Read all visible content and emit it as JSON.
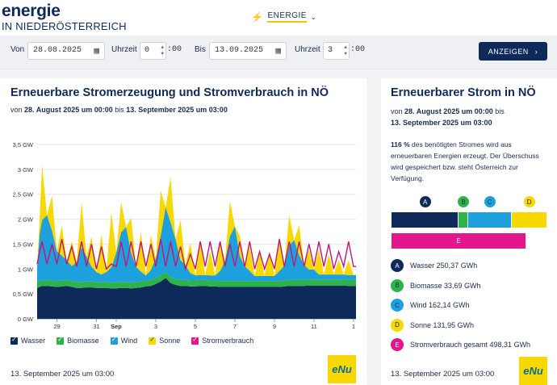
{
  "header": {
    "brand_title": "energie",
    "brand_subtitle": "IN NIEDERÖSTERREICH",
    "nav_label": "ENERGIE"
  },
  "filter": {
    "von_label": "Von",
    "von_value": "28.08.2025",
    "uhrzeit1_label": "Uhrzeit",
    "uhrzeit1_value": "0",
    "uhrzeit1_suffix": ":00",
    "bis_label": "Bis",
    "bis_value": "13.09.2025",
    "uhrzeit2_label": "Uhrzeit",
    "uhrzeit2_value": "3",
    "uhrzeit2_suffix": ":00",
    "button_label": "ANZEIGEN"
  },
  "left_card": {
    "title": "Erneuerbare Stromerzeugung und Stromverbrauch in NÖ",
    "sub_prefix": "von ",
    "sub_from": "28. August 2025 um 00:00",
    "sub_mid": " bis ",
    "sub_to": "13. September 2025 um 03:00",
    "footer_date": "13. September 2025 um 03:00",
    "legend": {
      "wasser": "Wasser",
      "biomasse": "Biomasse",
      "wind": "Wind",
      "sonne": "Sonne",
      "strom": "Stromverbrauch"
    }
  },
  "right_card": {
    "title": "Erneuerbarer Strom in NÖ",
    "sub_prefix": "von ",
    "sub_from": "28. August 2025 um 00:00",
    "sub_mid": " bis",
    "sub_to": "13. September 2025 um 03:00",
    "percent": "116 %",
    "text": " des benötigten Stromes wird aus erneuerbaren Energien erzeugt. Der Überschuss wird gespeichert bzw. steht Österreich zur Verfügung.",
    "footer_date": "13. September 2025 um 03:00",
    "items": [
      {
        "letter": "A",
        "label": "Wasser 250,37 GWh",
        "color": "#0e2a5a",
        "text_color": "#ffffff"
      },
      {
        "letter": "B",
        "label": "Biomasse 33,69 GWh",
        "color": "#2db34a",
        "text_color": "#0e2a5a"
      },
      {
        "letter": "C",
        "label": "Wind 162,14 GWh",
        "color": "#1ea0dc",
        "text_color": "#0e2a5a"
      },
      {
        "letter": "D",
        "label": "Sonne 131,95 GWh",
        "color": "#f7d800",
        "text_color": "#0e2a5a"
      },
      {
        "letter": "E",
        "label": "Stromverbrauch gesamt 498,31 GWh",
        "color": "#e3168c",
        "text_color": "#ffffff"
      }
    ]
  },
  "logo_text": "eNu",
  "chart_data": {
    "type": "area",
    "stacked": true,
    "ylabel": "",
    "ylim": [
      0,
      3.5
    ],
    "yticks": [
      "0 GW",
      "0,5 GW",
      "1 GW",
      "1,5 GW",
      "2 GW",
      "2,5 GW",
      "3 GW",
      "3,5 GW"
    ],
    "xticks": [
      "29",
      "31",
      "Sep",
      "3",
      "5",
      "7",
      "9",
      "11",
      "1"
    ],
    "xlim_days": [
      0,
      16.125
    ],
    "xtick_days": [
      1,
      3,
      4,
      6,
      8,
      10,
      12,
      14,
      16
    ],
    "x_days": [
      0,
      0.125,
      0.25,
      0.5,
      0.75,
      1.0,
      1.25,
      1.5,
      1.75,
      2.0,
      2.25,
      2.5,
      2.75,
      3.0,
      3.25,
      3.5,
      3.75,
      4.0,
      4.25,
      4.5,
      4.75,
      5.0,
      5.25,
      5.5,
      5.75,
      6.0,
      6.25,
      6.5,
      6.75,
      7.0,
      7.25,
      7.5,
      7.75,
      8.0,
      8.25,
      8.5,
      8.75,
      9.0,
      9.25,
      9.5,
      9.75,
      10.0,
      10.25,
      10.5,
      10.75,
      11.0,
      11.25,
      11.5,
      11.75,
      12.0,
      12.25,
      12.5,
      12.75,
      13.0,
      13.25,
      13.5,
      13.75,
      14.0,
      14.25,
      14.5,
      14.75,
      15.0,
      15.25,
      15.5,
      15.75,
      16.0,
      16.125
    ],
    "series": [
      {
        "name": "Wasser",
        "color": "#0e2a5a",
        "values": [
          0.62,
          0.64,
          0.66,
          0.66,
          0.65,
          0.64,
          0.65,
          0.66,
          0.64,
          0.62,
          0.62,
          0.63,
          0.63,
          0.62,
          0.62,
          0.62,
          0.61,
          0.61,
          0.62,
          0.62,
          0.61,
          0.62,
          0.63,
          0.65,
          0.66,
          0.7,
          0.75,
          0.82,
          0.72,
          0.68,
          0.66,
          0.66,
          0.65,
          0.65,
          0.66,
          0.66,
          0.65,
          0.65,
          0.64,
          0.64,
          0.64,
          0.64,
          0.64,
          0.64,
          0.64,
          0.64,
          0.64,
          0.64,
          0.64,
          0.64,
          0.64,
          0.65,
          0.66,
          0.66,
          0.66,
          0.66,
          0.67,
          0.67,
          0.67,
          0.67,
          0.67,
          0.67,
          0.67,
          0.67,
          0.66,
          0.66,
          0.66
        ]
      },
      {
        "name": "Biomasse",
        "color": "#2db34a",
        "values": [
          0.12,
          0.12,
          0.12,
          0.12,
          0.12,
          0.12,
          0.12,
          0.12,
          0.12,
          0.12,
          0.12,
          0.12,
          0.12,
          0.12,
          0.12,
          0.12,
          0.12,
          0.12,
          0.12,
          0.12,
          0.12,
          0.12,
          0.12,
          0.12,
          0.12,
          0.12,
          0.12,
          0.12,
          0.12,
          0.12,
          0.12,
          0.12,
          0.12,
          0.12,
          0.12,
          0.12,
          0.12,
          0.12,
          0.12,
          0.12,
          0.12,
          0.12,
          0.12,
          0.12,
          0.12,
          0.12,
          0.12,
          0.12,
          0.12,
          0.12,
          0.12,
          0.12,
          0.12,
          0.12,
          0.12,
          0.12,
          0.12,
          0.12,
          0.12,
          0.12,
          0.12,
          0.12,
          0.12,
          0.12,
          0.12,
          0.12,
          0.12
        ]
      },
      {
        "name": "Wind",
        "color": "#1ea0dc",
        "values": [
          0.3,
          0.95,
          1.2,
          1.3,
          1.0,
          0.6,
          0.5,
          0.4,
          0.3,
          0.4,
          0.7,
          0.5,
          0.3,
          0.2,
          0.15,
          0.2,
          0.3,
          0.6,
          1.0,
          1.1,
          0.6,
          0.3,
          0.2,
          0.1,
          0.2,
          0.4,
          0.8,
          1.3,
          1.1,
          0.8,
          0.4,
          0.3,
          0.15,
          0.1,
          0.1,
          0.1,
          0.1,
          0.1,
          0.2,
          0.4,
          0.9,
          1.1,
          0.5,
          0.3,
          0.2,
          0.1,
          0.1,
          0.1,
          0.1,
          0.1,
          0.2,
          0.3,
          0.7,
          0.8,
          0.5,
          0.3,
          0.2,
          0.2,
          0.1,
          0.1,
          0.1,
          0.1,
          0.1,
          0.1,
          0.1,
          0.1,
          0.1
        ]
      },
      {
        "name": "Sonne",
        "color": "#f7d800",
        "values": [
          0.0,
          0.3,
          1.1,
          0.0,
          0.7,
          0.0,
          0.6,
          0.0,
          0.5,
          0.0,
          0.9,
          0.0,
          0.6,
          0.0,
          0.8,
          0.0,
          1.1,
          0.0,
          0.6,
          0.0,
          0.7,
          0.0,
          0.8,
          0.0,
          0.7,
          0.0,
          0.9,
          0.0,
          0.9,
          0.0,
          0.8,
          0.0,
          0.6,
          0.0,
          0.7,
          0.0,
          0.5,
          0.0,
          0.6,
          0.0,
          0.7,
          0.0,
          0.4,
          0.0,
          0.5,
          0.0,
          0.5,
          0.0,
          0.5,
          0.0,
          0.7,
          0.0,
          0.6,
          0.0,
          0.6,
          0.0,
          0.4,
          0.0,
          0.5,
          0.0,
          0.4,
          0.0,
          0.3,
          0.0,
          0.3,
          0.0,
          0.0
        ]
      }
    ],
    "consumption": {
      "name": "Stromverbrauch",
      "color": "#c0157a",
      "values": [
        1.1,
        1.35,
        1.55,
        1.1,
        1.5,
        1.1,
        1.6,
        1.1,
        1.45,
        1.05,
        1.55,
        1.05,
        1.5,
        1.0,
        1.45,
        1.0,
        1.1,
        1.05,
        1.55,
        1.05,
        1.55,
        1.05,
        1.55,
        1.05,
        1.5,
        1.05,
        1.6,
        1.05,
        1.55,
        1.05,
        1.45,
        1.0,
        1.3,
        1.0,
        1.55,
        1.05,
        1.55,
        1.05,
        1.55,
        1.05,
        1.5,
        1.05,
        1.55,
        1.05,
        1.55,
        1.0,
        1.35,
        1.0,
        1.3,
        1.0,
        1.6,
        1.05,
        1.55,
        1.05,
        1.55,
        1.05,
        1.5,
        1.05,
        1.55,
        1.05,
        1.5,
        1.0,
        1.35,
        1.05,
        1.55,
        1.05,
        1.05
      ]
    },
    "share_bar": [
      {
        "letter": "A",
        "value": 250.37
      },
      {
        "letter": "B",
        "value": 33.69
      },
      {
        "letter": "C",
        "value": 162.14
      },
      {
        "letter": "D",
        "value": 131.95
      }
    ],
    "consumption_total": 498.31
  }
}
